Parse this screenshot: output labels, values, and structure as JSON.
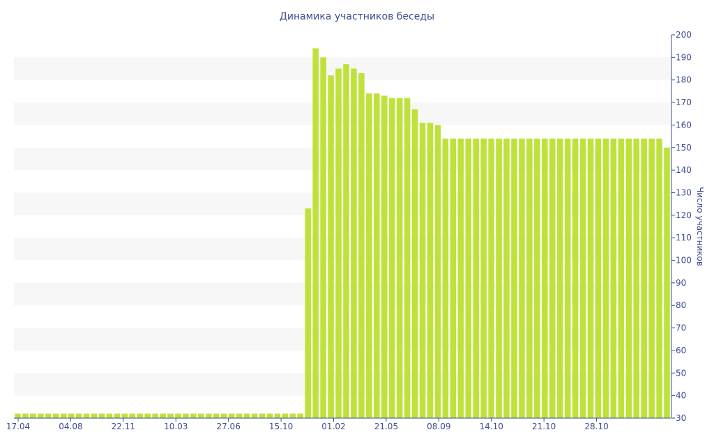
{
  "chart_data": {
    "type": "bar",
    "title": "Динамика участников беседы",
    "xlabel": "",
    "ylabel": "Число участников",
    "ylim": [
      30,
      200
    ],
    "yticks": [
      30,
      40,
      50,
      60,
      70,
      80,
      90,
      100,
      110,
      120,
      130,
      140,
      150,
      160,
      170,
      180,
      190,
      200
    ],
    "xtick_labels": [
      "17.04",
      "04.08",
      "22.11",
      "10.03",
      "27.06",
      "15.10",
      "01.02",
      "21.05",
      "08.09",
      "14.10",
      "21.10",
      "28.10"
    ],
    "y_axis_side": "right",
    "grid": "horizontal alternating bands",
    "colors": {
      "bar": "#bfe23a",
      "axis": "#3b4b8f",
      "band": "#f7f7f7"
    },
    "values": [
      32,
      32,
      32,
      32,
      32,
      32,
      32,
      32,
      32,
      32,
      32,
      32,
      32,
      32,
      32,
      32,
      32,
      32,
      32,
      32,
      32,
      32,
      32,
      32,
      32,
      32,
      32,
      32,
      32,
      32,
      32,
      32,
      32,
      32,
      32,
      32,
      32,
      32,
      123,
      194,
      190,
      182,
      185,
      187,
      185,
      183,
      174,
      174,
      173,
      172,
      172,
      172,
      167,
      161,
      161,
      160,
      154,
      154,
      154,
      154,
      154,
      154,
      154,
      154,
      154,
      154,
      154,
      154,
      154,
      154,
      154,
      154,
      154,
      154,
      154,
      154,
      154,
      154,
      154,
      154,
      154,
      154,
      154,
      154,
      154,
      150
    ]
  }
}
